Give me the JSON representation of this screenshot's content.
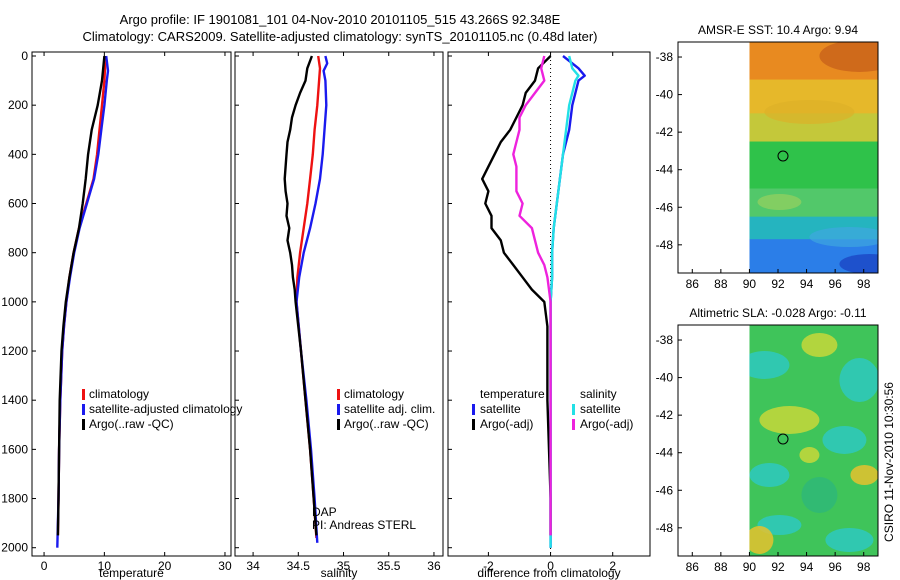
{
  "title_line1": "Argo profile: IF 1901081_101 04-Nov-2010 20101105_515 43.266S 92.348E",
  "title_line2": "Climatology: CARS2009. Satellite-adjusted climatology: synTS_20101105.nc (0.48d later)",
  "credit": "CSIRO 11-Nov-2010 10:30:56",
  "colors": {
    "red": "#ee1111",
    "blue": "#1a1aee",
    "black": "#000000",
    "cyan": "#22e0e6",
    "magenta": "#ee22dd"
  },
  "chart_data": [
    {
      "type": "line",
      "name": "temperature-profile",
      "xlabel": "temperature",
      "ylabel": "",
      "xlim": [
        -2,
        31
      ],
      "ylim": [
        2050,
        0
      ],
      "xticks": [
        "0",
        "10",
        "20",
        "30"
      ],
      "xtick_values": [
        0,
        10,
        20,
        30
      ],
      "yticks": [
        "0",
        "200",
        "400",
        "600",
        "800",
        "1000",
        "1200",
        "1400",
        "1600",
        "1800",
        "2000"
      ],
      "ytick_values": [
        0,
        200,
        400,
        600,
        800,
        1000,
        1200,
        1400,
        1600,
        1800,
        2000
      ],
      "legend": [
        "climatology",
        "satellite-adjusted climatology",
        "Argo(..raw -QC)"
      ],
      "legend_position": "bottom-center",
      "series": [
        {
          "name": "climatology",
          "color": "red",
          "depth": [
            0,
            100,
            200,
            300,
            400,
            500,
            600,
            700,
            800,
            900,
            1000,
            1100,
            1200,
            1400,
            1600,
            1800,
            1950
          ],
          "values": [
            10.2,
            10.0,
            9.6,
            9.2,
            8.8,
            8.2,
            7.0,
            5.8,
            4.9,
            4.2,
            3.7,
            3.3,
            3.0,
            2.7,
            2.5,
            2.4,
            2.3
          ]
        },
        {
          "name": "satellite-adjusted climatology",
          "color": "blue",
          "depth": [
            0,
            60,
            100,
            200,
            300,
            400,
            500,
            600,
            700,
            800,
            900,
            1000,
            1100,
            1200,
            1400,
            1600,
            1800,
            2000
          ],
          "values": [
            10.3,
            10.6,
            10.4,
            10.0,
            9.5,
            9.0,
            8.3,
            7.1,
            5.9,
            5.0,
            4.3,
            3.7,
            3.3,
            3.0,
            2.7,
            2.5,
            2.4,
            2.2
          ]
        },
        {
          "name": "Argo(..raw -QC)",
          "color": "black",
          "depth": [
            0,
            100,
            200,
            300,
            400,
            500,
            600,
            700,
            800,
            900,
            1000,
            1100,
            1200,
            1400,
            1600,
            1800,
            1950
          ],
          "values": [
            10.0,
            9.6,
            8.9,
            7.9,
            7.3,
            6.9,
            6.4,
            5.8,
            4.9,
            4.2,
            3.6,
            3.2,
            2.9,
            2.6,
            2.5,
            2.4,
            2.3
          ]
        }
      ]
    },
    {
      "type": "line",
      "name": "salinity-profile",
      "xlabel": "salinity",
      "ylabel": "",
      "xlim": [
        33.8,
        36.1
      ],
      "ylim": [
        2050,
        0
      ],
      "xticks": [
        "34",
        "34.5",
        "35",
        "35.5",
        "36"
      ],
      "xtick_values": [
        34,
        34.5,
        35,
        35.5,
        36
      ],
      "legend": [
        "climatology",
        "satellite adj. clim.",
        "Argo(..raw -QC)"
      ],
      "legend_position": "bottom-center",
      "annotations": [
        "DAP",
        "PI: Andreas STERL"
      ],
      "series": [
        {
          "name": "climatology",
          "color": "red",
          "depth": [
            0,
            50,
            100,
            200,
            300,
            400,
            500,
            600,
            700,
            800,
            900,
            1000,
            1200,
            1400,
            1600,
            1800,
            1960
          ],
          "values": [
            34.72,
            34.74,
            34.73,
            34.71,
            34.68,
            34.66,
            34.63,
            34.6,
            34.56,
            34.52,
            34.49,
            34.48,
            34.53,
            34.58,
            34.63,
            34.67,
            34.7
          ]
        },
        {
          "name": "satellite adj. clim.",
          "color": "blue",
          "depth": [
            0,
            30,
            60,
            100,
            200,
            300,
            400,
            500,
            600,
            700,
            800,
            900,
            1000,
            1200,
            1400,
            1600,
            1800,
            1980
          ],
          "values": [
            34.8,
            34.82,
            34.78,
            34.8,
            34.81,
            34.79,
            34.77,
            34.74,
            34.69,
            34.63,
            34.56,
            34.51,
            34.48,
            34.53,
            34.59,
            34.64,
            34.68,
            34.71
          ]
        },
        {
          "name": "Argo(..raw -QC)",
          "color": "black",
          "depth": [
            0,
            50,
            100,
            150,
            200,
            250,
            300,
            350,
            400,
            450,
            500,
            550,
            600,
            650,
            700,
            750,
            800,
            850,
            900,
            950,
            1000,
            1200,
            1400,
            1600,
            1800,
            1950
          ],
          "values": [
            34.65,
            34.6,
            34.58,
            34.52,
            34.47,
            34.43,
            34.41,
            34.38,
            34.37,
            34.36,
            34.35,
            34.36,
            34.38,
            34.37,
            34.4,
            34.38,
            34.41,
            34.43,
            34.44,
            34.46,
            34.47,
            34.53,
            34.58,
            34.63,
            34.67,
            34.7
          ]
        }
      ]
    },
    {
      "type": "line",
      "name": "difference-profile",
      "xlabel": "difference from climatology",
      "ylabel": "",
      "xlim": [
        -3.3,
        3.2
      ],
      "ylim": [
        2050,
        0
      ],
      "xticks": [
        "-2",
        "0",
        "2"
      ],
      "xtick_values": [
        -2,
        0,
        2
      ],
      "legend_groups": [
        {
          "title": "temperature",
          "items": [
            "satellite",
            "Argo(-adj)"
          ]
        },
        {
          "title": "salinity",
          "items": [
            "satellite",
            "Argo(-adj)"
          ]
        }
      ],
      "series": [
        {
          "name": "temperature satellite",
          "color": "blue",
          "depth": [
            0,
            50,
            80,
            100,
            150,
            200,
            300,
            400,
            500,
            600,
            700,
            800,
            900,
            1000,
            1200,
            1400,
            1600,
            1800,
            2000
          ],
          "values": [
            0.4,
            0.9,
            1.1,
            0.9,
            0.8,
            0.7,
            0.6,
            0.4,
            0.3,
            0.2,
            0.1,
            0.05,
            0.05,
            0.0,
            0.0,
            0.0,
            0.0,
            0.0,
            0.0
          ]
        },
        {
          "name": "temperature Argo(-adj)",
          "color": "black",
          "depth": [
            0,
            50,
            100,
            150,
            200,
            250,
            300,
            350,
            400,
            450,
            500,
            550,
            600,
            650,
            700,
            750,
            800,
            850,
            900,
            950,
            1000,
            1100,
            1200,
            1400,
            1600,
            1800,
            1950
          ],
          "values": [
            0.0,
            -0.4,
            -0.5,
            -0.8,
            -0.9,
            -1.1,
            -1.3,
            -1.6,
            -1.8,
            -2.0,
            -2.2,
            -2.0,
            -2.1,
            -1.9,
            -1.9,
            -1.6,
            -1.5,
            -1.2,
            -0.9,
            -0.6,
            -0.2,
            -0.1,
            -0.1,
            -0.1,
            -0.05,
            0.0,
            0.0
          ]
        },
        {
          "name": "salinity satellite",
          "color": "cyan",
          "depth": [
            0,
            50,
            80,
            100,
            150,
            200,
            300,
            400,
            500,
            600,
            700,
            800,
            900,
            1000,
            1200,
            1400,
            1600,
            1800,
            2000
          ],
          "values": [
            0.6,
            0.7,
            0.9,
            0.8,
            0.7,
            0.6,
            0.5,
            0.4,
            0.3,
            0.2,
            0.1,
            0.05,
            0.05,
            0.0,
            0.0,
            0.0,
            0.0,
            0.0,
            0.0
          ]
        },
        {
          "name": "salinity Argo(-adj)",
          "color": "magenta",
          "depth": [
            0,
            50,
            100,
            150,
            200,
            250,
            300,
            350,
            400,
            450,
            500,
            550,
            600,
            650,
            700,
            750,
            800,
            850,
            900,
            950,
            1000,
            1100,
            1200,
            1400,
            1600,
            1800,
            1950
          ],
          "values": [
            -0.2,
            -0.3,
            -0.2,
            -0.5,
            -0.8,
            -1.0,
            -1.0,
            -1.1,
            -1.2,
            -1.1,
            -1.1,
            -1.1,
            -0.9,
            -1.0,
            -0.6,
            -0.5,
            -0.4,
            -0.2,
            -0.1,
            -0.05,
            0.0,
            0.0,
            0.0,
            0.0,
            0.0,
            0.0,
            0.0
          ]
        }
      ]
    },
    {
      "type": "heatmap",
      "name": "sst-map",
      "title": "AMSR-E SST: 10.4 Argo: 9.94",
      "xlim": [
        85,
        99
      ],
      "ylim": [
        -49.5,
        -37.2
      ],
      "xticks": [
        "86",
        "88",
        "90",
        "92",
        "94",
        "96",
        "98"
      ],
      "xtick_values": [
        86,
        88,
        90,
        92,
        94,
        96,
        98
      ],
      "yticks": [
        "-38",
        "-40",
        "-42",
        "-44",
        "-46",
        "-48"
      ],
      "ytick_values": [
        -38,
        -40,
        -42,
        -44,
        -46,
        -48
      ],
      "data_extent": [
        90,
        99
      ],
      "marker": {
        "lon": 92.35,
        "lat": -43.27
      },
      "color_bands": [
        {
          "lat_top": -37.2,
          "lat_bottom": -39.2,
          "color": "#e88a20"
        },
        {
          "lat_top": -39.2,
          "lat_bottom": -41.0,
          "color": "#e6b82a"
        },
        {
          "lat_top": -41.0,
          "lat_bottom": -42.5,
          "color": "#c4c83a"
        },
        {
          "lat_top": -42.5,
          "lat_bottom": -45.0,
          "color": "#2fc24a"
        },
        {
          "lat_top": -45.0,
          "lat_bottom": -46.5,
          "color": "#52c86a"
        },
        {
          "lat_top": -46.5,
          "lat_bottom": -47.7,
          "color": "#25b4bf"
        },
        {
          "lat_top": -47.7,
          "lat_bottom": -49.5,
          "color": "#2b7ee8"
        }
      ]
    },
    {
      "type": "heatmap",
      "name": "sla-map",
      "title": "Altimetric SLA: -0.028 Argo: -0.11",
      "xlim": [
        85,
        99
      ],
      "ylim": [
        -49.5,
        -37.2
      ],
      "xticks": [
        "86",
        "88",
        "90",
        "92",
        "94",
        "96",
        "98"
      ],
      "xtick_values": [
        86,
        88,
        90,
        92,
        94,
        96,
        98
      ],
      "yticks": [
        "-38",
        "-40",
        "-42",
        "-44",
        "-46",
        "-48"
      ],
      "ytick_values": [
        -38,
        -40,
        -42,
        -44,
        -46,
        -48
      ],
      "data_extent": [
        90,
        99
      ],
      "marker": {
        "lon": 92.35,
        "lat": -43.27
      },
      "base_color": "#3fc45a",
      "patch_colors": [
        "#2ec9c0",
        "#c7d83a",
        "#2fb878",
        "#e6c22e"
      ]
    }
  ]
}
